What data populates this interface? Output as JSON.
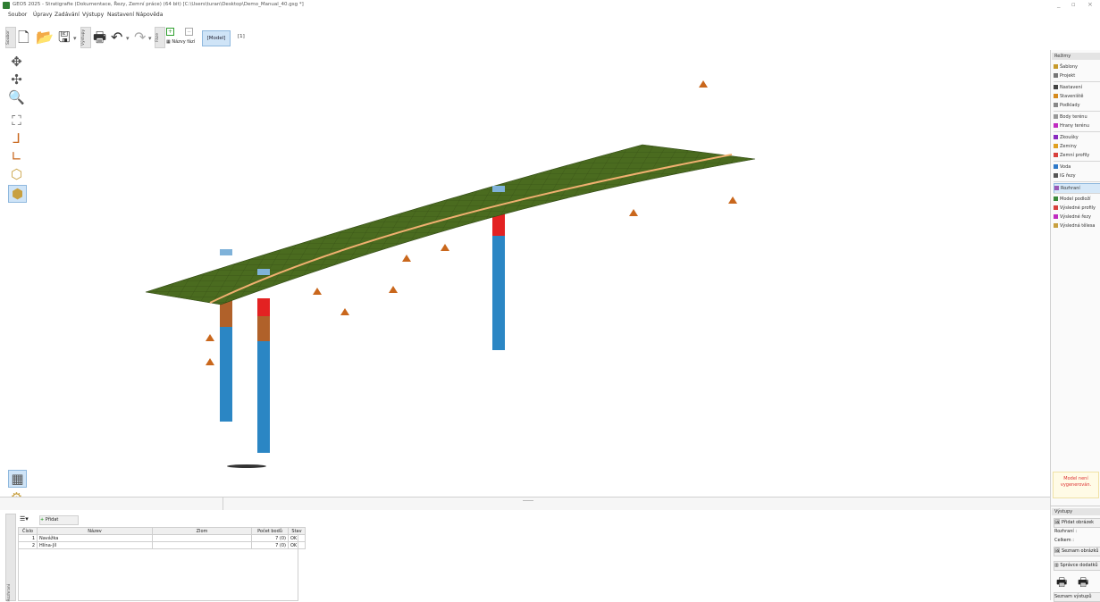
{
  "window": {
    "title": "GEO5 2025 - Stratigrafie (Dokumentace, Řezy, Zemní práce) (64 bit) [C:\\Users\\turan\\Desktop\\Demo_Manual_40.gsg *]",
    "controls": [
      "_",
      "▫",
      "×"
    ]
  },
  "menu": [
    "Soubor",
    "Úpravy",
    "Zadávání",
    "Výstupy",
    "Nastavení",
    "Nápověda"
  ],
  "toolbar": {
    "tab_file": "Soubor",
    "tab_outputs": "Výstupy",
    "tab_stage": "Fáze",
    "stage_names_label": "Názvy fází",
    "model_button": "[Model]",
    "stage_number": "[1]"
  },
  "right_panel": {
    "header": "Režimy",
    "groups": [
      [
        {
          "label": "Šablony",
          "color": "#c79a2b"
        },
        {
          "label": "Projekt",
          "color": "#777777"
        }
      ],
      [
        {
          "label": "Nastavení",
          "color": "#444444"
        },
        {
          "label": "Staveniště",
          "color": "#d68a1c"
        },
        {
          "label": "Podklady",
          "color": "#888888"
        }
      ],
      [
        {
          "label": "Body terénu",
          "color": "#999999"
        },
        {
          "label": "Hrany terénu",
          "color": "#c02bc0"
        }
      ],
      [
        {
          "label": "Zkoušky",
          "color": "#8a2bbf"
        },
        {
          "label": "Zeminy",
          "color": "#e0a020"
        },
        {
          "label": "Zemní profily",
          "color": "#d8403c"
        }
      ],
      [
        {
          "label": "Voda",
          "color": "#2f79c9"
        },
        {
          "label": "IG řezy",
          "color": "#555555"
        }
      ],
      [
        {
          "label": "Rozhraní",
          "color": "#9b59b6",
          "selected": true
        }
      ],
      [
        {
          "label": "Model podloží",
          "color": "#3a8a3a"
        },
        {
          "label": "Výsledné profily",
          "color": "#d8403c"
        },
        {
          "label": "Výsledné řezy",
          "color": "#c02bc0"
        },
        {
          "label": "Výsledná tělesa",
          "color": "#c8a040"
        }
      ]
    ],
    "warning": "Model není vygenerován."
  },
  "outputs": {
    "header": "Výstupy",
    "add_image": "Přidat obrázek",
    "interface_label": "Rozhraní :",
    "total_label": "Celkem :",
    "list_images": "Seznam obrázků",
    "attachments": "Správce dodatků",
    "bottom_button": "Seznam výstupů"
  },
  "bottom": {
    "add_button": "Přidat",
    "columns": [
      "Číslo",
      "Název",
      "Zlom",
      "Počet bodů",
      "Stav"
    ],
    "rows": [
      {
        "num": "1",
        "name": "Navážka",
        "zlom": "",
        "points": "7 (0)",
        "status": "OK"
      },
      {
        "num": "2",
        "name": "Hlína-Jíl",
        "zlom": "",
        "points": "7 (0)",
        "status": "OK"
      }
    ],
    "side_tab": "Rozhraní"
  },
  "scene_colors": {
    "surface": "#4a6b1f",
    "soil_top": "#b0612a",
    "soil_bottom": "#2b86c4",
    "sand": "#e32222",
    "marker": "#c9671c"
  }
}
